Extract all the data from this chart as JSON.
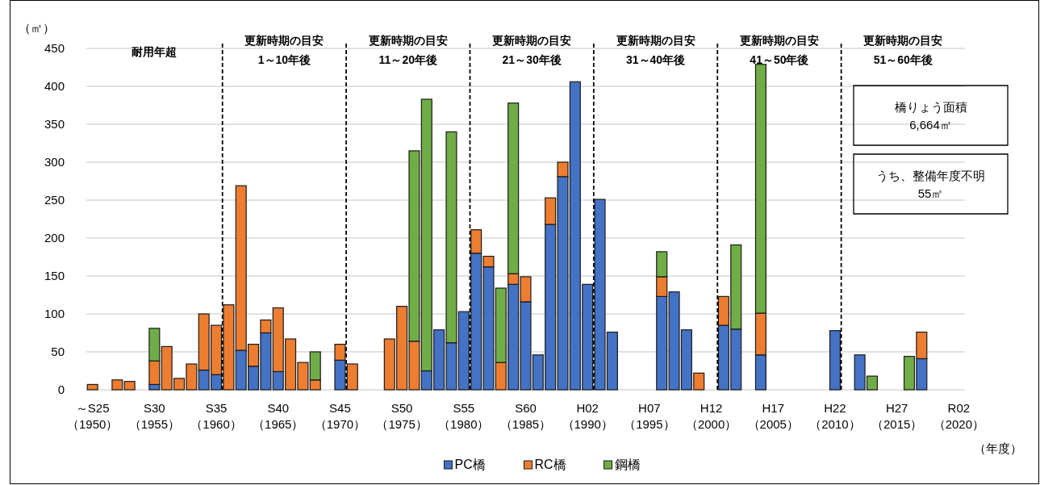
{
  "chart_data": {
    "type": "bar",
    "stacked": true,
    "ylabel": "（㎡）",
    "xlabel": "（年度）",
    "categories": [
      "～S25\n（1950）",
      null,
      null,
      null,
      null,
      "S30\n（1955）",
      null,
      null,
      null,
      null,
      "S35\n（1960）",
      null,
      null,
      null,
      null,
      "S40\n（1965）",
      null,
      null,
      null,
      null,
      "S45\n（1970）",
      null,
      null,
      null,
      null,
      "S50\n（1975）",
      null,
      null,
      null,
      null,
      "S55\n（1980）",
      null,
      null,
      null,
      null,
      "S60\n（1985）",
      null,
      null,
      null,
      null,
      "H02\n（1990）",
      null,
      null,
      null,
      null,
      "H07\n（1995）",
      null,
      null,
      null,
      null,
      "H12\n（2000）",
      null,
      null,
      null,
      null,
      "H17\n（2005）",
      null,
      null,
      null,
      null,
      "H22\n（2010）",
      null,
      null,
      null,
      null,
      "H27\n（2015）",
      null,
      null,
      null,
      null,
      "R02\n（2020）"
    ],
    "ylim": [
      0,
      450
    ],
    "yticks": [
      0,
      50,
      100,
      150,
      200,
      250,
      300,
      350,
      400,
      450
    ],
    "grid": "y",
    "legend": "bottom",
    "series": [
      {
        "name": "PC橋",
        "color": "#4472c4",
        "values": [
          null,
          null,
          null,
          null,
          null,
          7,
          null,
          null,
          null,
          26,
          20,
          null,
          52,
          31,
          75,
          24,
          null,
          null,
          null,
          null,
          39,
          null,
          null,
          null,
          null,
          null,
          null,
          25,
          79,
          62,
          103,
          180,
          162,
          null,
          139,
          116,
          46,
          218,
          281,
          406,
          139,
          251,
          76,
          null,
          null,
          null,
          123,
          129,
          79,
          null,
          null,
          85,
          80,
          null,
          46,
          null,
          null,
          null,
          null,
          null,
          78,
          null,
          46,
          null,
          null,
          null,
          null,
          41,
          null,
          null,
          null
        ]
      },
      {
        "name": "RC橋",
        "color": "#ed7d31",
        "values": [
          7,
          null,
          13,
          11,
          null,
          31,
          57,
          15,
          34,
          74,
          65,
          112,
          217,
          29,
          17,
          84,
          67,
          36,
          13,
          null,
          21,
          34,
          null,
          null,
          67,
          110,
          64,
          null,
          null,
          null,
          null,
          31,
          14,
          36,
          14,
          33,
          null,
          35,
          19,
          null,
          null,
          null,
          null,
          null,
          null,
          null,
          26,
          null,
          null,
          22,
          null,
          38,
          null,
          null,
          55,
          null,
          null,
          null,
          null,
          null,
          null,
          null,
          null,
          null,
          null,
          null,
          null,
          35,
          null,
          null,
          null
        ]
      },
      {
        "name": "鋼橋",
        "color": "#70ad47",
        "values": [
          null,
          null,
          null,
          null,
          null,
          43,
          null,
          null,
          null,
          null,
          null,
          null,
          null,
          null,
          null,
          null,
          null,
          null,
          37,
          null,
          null,
          null,
          null,
          null,
          null,
          null,
          251,
          358,
          null,
          278,
          null,
          null,
          null,
          98,
          225,
          null,
          null,
          null,
          null,
          null,
          null,
          null,
          null,
          null,
          null,
          null,
          33,
          null,
          null,
          null,
          null,
          null,
          111,
          null,
          328,
          null,
          null,
          null,
          null,
          null,
          null,
          null,
          null,
          18,
          null,
          null,
          44,
          null,
          null,
          null,
          null
        ]
      }
    ],
    "annotations": [
      "耐用年超",
      "更新時期の目安\n1～10年後",
      "更新時期の目安\n11～20年後",
      "更新時期の目安\n21～30年後",
      "更新時期の目安\n31～40年後",
      "更新時期の目安\n41～50年後",
      "更新時期の目安\n51～60年後",
      "橋りょう面積\n6,664㎡",
      "うち、整備年度不明\n55㎡"
    ]
  }
}
